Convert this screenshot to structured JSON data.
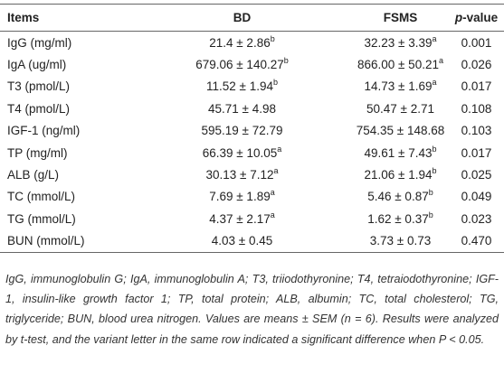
{
  "table": {
    "header": [
      "Items",
      "BD",
      "FSMS",
      {
        "italic": "p",
        "text": "-value"
      }
    ],
    "rows": [
      [
        "IgG (mg/ml)",
        {
          "value": "21.4 ± 2.86",
          "sup": "b"
        },
        {
          "value": "32.23 ± 3.39",
          "sup": "a"
        },
        "0.001"
      ],
      [
        "IgA (ug/ml)",
        {
          "value": "679.06 ± 140.27",
          "sup": "b"
        },
        {
          "value": "866.00 ± 50.21",
          "sup": "a"
        },
        "0.026"
      ],
      [
        "T3 (pmol/L)",
        {
          "value": "11.52 ± 1.94",
          "sup": "b"
        },
        {
          "value": "14.73 ± 1.69",
          "sup": "a"
        },
        "0.017"
      ],
      [
        "T4 (pmol/L)",
        "45.71 ± 4.98",
        "50.47 ± 2.71",
        "0.108"
      ],
      [
        "IGF-1 (ng/ml)",
        "595.19 ± 72.79",
        "754.35 ± 148.68",
        "0.103"
      ],
      [
        "TP (mg/ml)",
        {
          "value": "66.39 ± 10.05",
          "sup": "a"
        },
        {
          "value": "49.61 ± 7.43",
          "sup": "b"
        },
        "0.017"
      ],
      [
        "ALB (g/L)",
        {
          "value": "30.13 ± 7.12",
          "sup": "a"
        },
        {
          "value": "21.06 ± 1.94",
          "sup": "b"
        },
        "0.025"
      ],
      [
        "TC (mmol/L)",
        {
          "value": "7.69 ± 1.89",
          "sup": "a"
        },
        {
          "value": "5.46 ± 0.87",
          "sup": "b"
        },
        "0.049"
      ],
      [
        "TG (mmol/L)",
        {
          "value": "4.37 ± 2.17",
          "sup": "a"
        },
        {
          "value": "1.62 ± 0.37",
          "sup": "b"
        },
        "0.023"
      ],
      [
        "BUN (mmol/L)",
        "4.03 ± 0.45",
        "3.73 ± 0.73",
        "0.470"
      ]
    ],
    "footnote": "IgG, immunoglobulin G; IgA, immunoglobulin A; T3, triiodothyronine; T4, tetraiodothyronine; IGF-1, insulin-like growth factor 1; TP, total protein; ALB, albumin; TC, total cholesterol; TG, triglyceride; BUN, blood urea nitrogen. Values are means ± SEM (n = 6). Results were analyzed by t-test, and the variant letter in the same row indicated a significant difference when P < 0.05."
  }
}
